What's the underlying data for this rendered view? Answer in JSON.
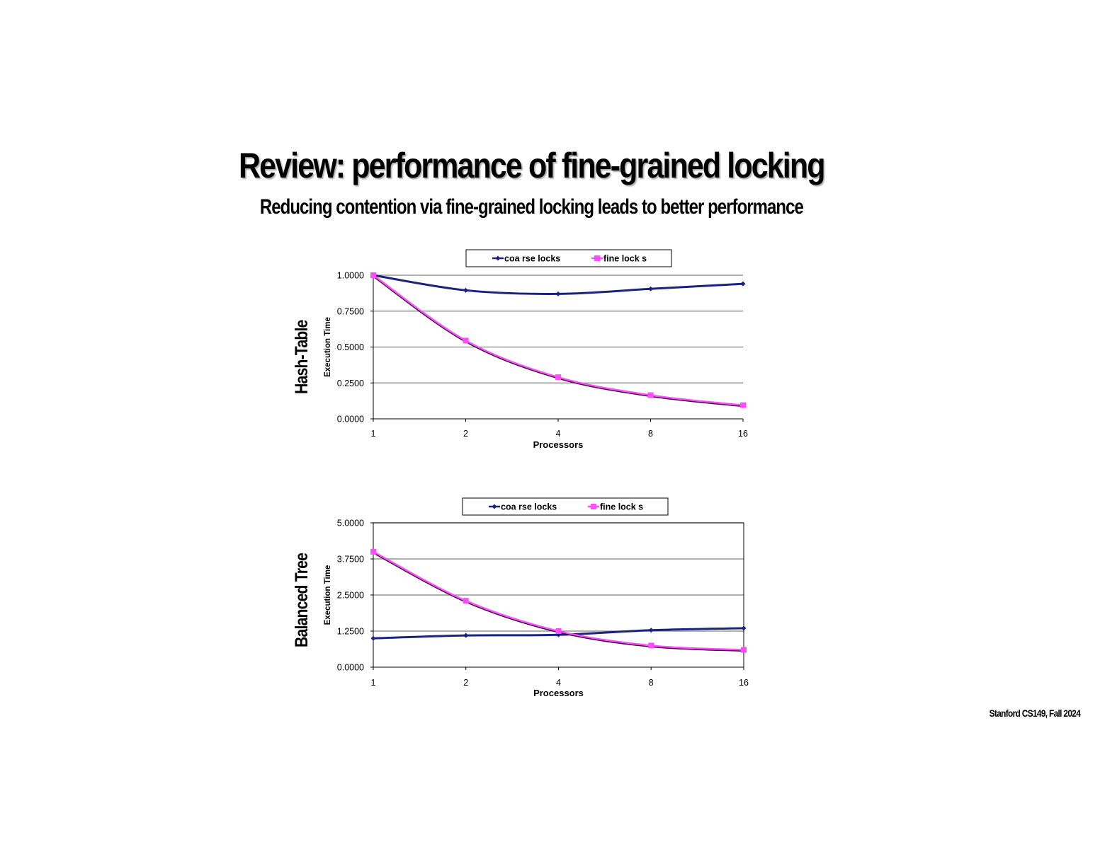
{
  "slide": {
    "title": "Review: performance of fine-grained locking",
    "subtitle": "Reducing contention via fine-grained locking leads to better performance",
    "footer": "Stanford CS149, Fall 2024"
  },
  "colors": {
    "coarse": "#1a237e",
    "fine": "#ff4dff",
    "grid": "#808080"
  },
  "chart_data": [
    {
      "type": "line",
      "side_label": "Hash-Table",
      "title": "",
      "xlabel": "Processors",
      "ylabel": "Execution Time",
      "categories": [
        "1",
        "2",
        "4",
        "8",
        "16"
      ],
      "ylim": [
        0,
        1.0
      ],
      "yticks": [
        "0.0000",
        "0.2500",
        "0.5000",
        "0.7500",
        "1.0000"
      ],
      "grid": true,
      "legend_position": "top",
      "series": [
        {
          "name": "coarse locks",
          "legend_label": "coa rse locks",
          "values": [
            1.0,
            0.895,
            0.87,
            0.905,
            0.94
          ]
        },
        {
          "name": "fine locks",
          "legend_label": "fine lock s",
          "values": [
            1.0,
            0.545,
            0.29,
            0.165,
            0.095
          ]
        }
      ]
    },
    {
      "type": "line",
      "side_label": "Balanced Tree",
      "title": "",
      "xlabel": "Processors",
      "ylabel": "Execution Time",
      "categories": [
        "1",
        "2",
        "4",
        "8",
        "16"
      ],
      "ylim": [
        0,
        5.0
      ],
      "yticks": [
        "0.0000",
        "1.2500",
        "2.5000",
        "3.7500",
        "5.0000"
      ],
      "grid": true,
      "legend_position": "top",
      "series": [
        {
          "name": "coarse locks",
          "legend_label": "coa rse locks",
          "values": [
            1.0,
            1.1,
            1.12,
            1.28,
            1.35
          ]
        },
        {
          "name": "fine locks",
          "legend_label": "fine lock s",
          "values": [
            4.0,
            2.3,
            1.25,
            0.75,
            0.6
          ]
        }
      ]
    }
  ]
}
